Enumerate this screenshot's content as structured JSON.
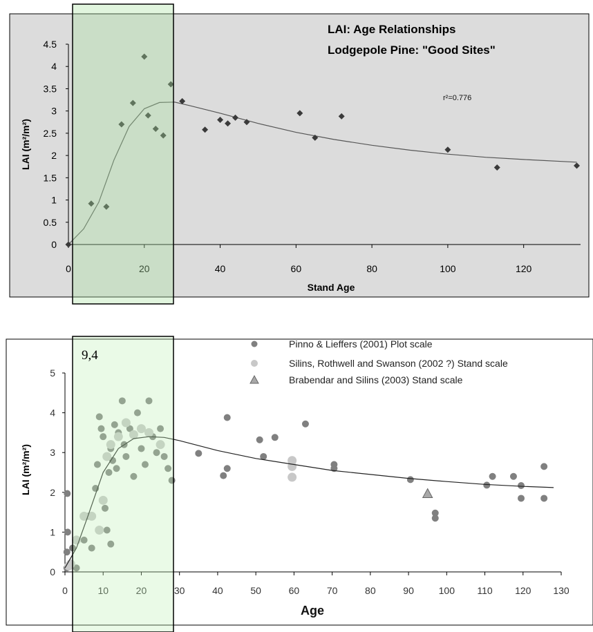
{
  "chart_data": [
    {
      "type": "scatter",
      "title": "LAI: Age Relationships",
      "subtitle": "Lodgepole Pine: \"Good Sites\"",
      "xlabel": "Stand Age",
      "ylabel": "LAI (m²/m²)",
      "annotation": "r²=0.776",
      "xlim": [
        0,
        135
      ],
      "ylim": [
        0,
        4.5
      ],
      "x_ticks": [
        "0",
        "20",
        "40",
        "60",
        "80",
        "100",
        "120"
      ],
      "y_ticks": [
        "0",
        "0.5",
        "1",
        "1.5",
        "2",
        "2.5",
        "3",
        "3.5",
        "4",
        "4.5"
      ],
      "grid": false,
      "series": [
        {
          "marker": "diamond",
          "color": "#3a3a3a",
          "points": [
            {
              "x": 0,
              "y": 0
            },
            {
              "x": 6,
              "y": 0.92
            },
            {
              "x": 10,
              "y": 0.85
            },
            {
              "x": 14,
              "y": 2.7
            },
            {
              "x": 17,
              "y": 3.18
            },
            {
              "x": 20,
              "y": 4.22
            },
            {
              "x": 21,
              "y": 2.9
            },
            {
              "x": 23,
              "y": 2.6
            },
            {
              "x": 25,
              "y": 2.45
            },
            {
              "x": 27,
              "y": 3.6
            },
            {
              "x": 30,
              "y": 3.22
            },
            {
              "x": 36,
              "y": 2.58
            },
            {
              "x": 40,
              "y": 2.8
            },
            {
              "x": 42,
              "y": 2.72
            },
            {
              "x": 44,
              "y": 2.85
            },
            {
              "x": 47,
              "y": 2.75
            },
            {
              "x": 61,
              "y": 2.95
            },
            {
              "x": 65,
              "y": 2.4
            },
            {
              "x": 72,
              "y": 2.88
            },
            {
              "x": 100,
              "y": 2.13
            },
            {
              "x": 113,
              "y": 1.73
            },
            {
              "x": 134,
              "y": 1.77
            }
          ]
        }
      ],
      "fit_line": [
        {
          "x": 0,
          "y": 0
        },
        {
          "x": 4,
          "y": 0.35
        },
        {
          "x": 8,
          "y": 0.95
        },
        {
          "x": 12,
          "y": 1.9
        },
        {
          "x": 16,
          "y": 2.65
        },
        {
          "x": 20,
          "y": 3.05
        },
        {
          "x": 24,
          "y": 3.19
        },
        {
          "x": 28,
          "y": 3.2
        },
        {
          "x": 32,
          "y": 3.12
        },
        {
          "x": 40,
          "y": 2.95
        },
        {
          "x": 50,
          "y": 2.72
        },
        {
          "x": 60,
          "y": 2.52
        },
        {
          "x": 70,
          "y": 2.36
        },
        {
          "x": 80,
          "y": 2.23
        },
        {
          "x": 90,
          "y": 2.12
        },
        {
          "x": 100,
          "y": 2.03
        },
        {
          "x": 110,
          "y": 1.96
        },
        {
          "x": 120,
          "y": 1.91
        },
        {
          "x": 134,
          "y": 1.85
        }
      ]
    },
    {
      "type": "scatter",
      "xlabel": "Age",
      "ylabel": "LAI (m²/m²)",
      "xlim": [
        0,
        130
      ],
      "ylim": [
        0,
        5
      ],
      "x_ticks": [
        "0",
        "10",
        "20",
        "30",
        "40",
        "50",
        "60",
        "70",
        "80",
        "90",
        "100",
        "110",
        "120",
        "130"
      ],
      "y_ticks": [
        "0",
        "1",
        "2",
        "3",
        "4",
        "5"
      ],
      "legend_position": "top",
      "series": [
        {
          "name": "Pinno & Lieffers (2001) Plot scale",
          "marker": "circle",
          "color": "#808080",
          "points": [
            {
              "x": 0.5,
              "y": 0.1
            },
            {
              "x": 0.5,
              "y": 0.5
            },
            {
              "x": 0.7,
              "y": 1.0
            },
            {
              "x": 0.6,
              "y": 1.97
            },
            {
              "x": 1.5,
              "y": 0.2
            },
            {
              "x": 2,
              "y": 0.6
            },
            {
              "x": 3,
              "y": 0.1
            },
            {
              "x": 5,
              "y": 0.8
            },
            {
              "x": 6,
              "y": 1.4
            },
            {
              "x": 7,
              "y": 0.6
            },
            {
              "x": 8,
              "y": 2.1
            },
            {
              "x": 8.5,
              "y": 2.7
            },
            {
              "x": 9,
              "y": 3.9
            },
            {
              "x": 9.5,
              "y": 3.6
            },
            {
              "x": 10,
              "y": 3.4
            },
            {
              "x": 10.5,
              "y": 1.6
            },
            {
              "x": 11,
              "y": 2.9
            },
            {
              "x": 11.5,
              "y": 2.5
            },
            {
              "x": 12,
              "y": 3.1
            },
            {
              "x": 12.5,
              "y": 2.8
            },
            {
              "x": 13,
              "y": 3.7
            },
            {
              "x": 13.5,
              "y": 2.6
            },
            {
              "x": 14,
              "y": 3.5
            },
            {
              "x": 15,
              "y": 4.3
            },
            {
              "x": 15.5,
              "y": 3.2
            },
            {
              "x": 16,
              "y": 2.9
            },
            {
              "x": 17,
              "y": 3.6
            },
            {
              "x": 18,
              "y": 2.4
            },
            {
              "x": 19,
              "y": 4.0
            },
            {
              "x": 20,
              "y": 3.1
            },
            {
              "x": 21,
              "y": 2.7
            },
            {
              "x": 22,
              "y": 4.3
            },
            {
              "x": 23,
              "y": 3.4
            },
            {
              "x": 24,
              "y": 3.0
            },
            {
              "x": 25,
              "y": 3.6
            },
            {
              "x": 26,
              "y": 2.9
            },
            {
              "x": 27,
              "y": 2.6
            },
            {
              "x": 28,
              "y": 2.3
            },
            {
              "x": 11,
              "y": 1.05
            },
            {
              "x": 12,
              "y": 0.7
            },
            {
              "x": 35,
              "y": 2.98
            },
            {
              "x": 41.5,
              "y": 2.42
            },
            {
              "x": 42.5,
              "y": 3.88
            },
            {
              "x": 42.5,
              "y": 2.6
            },
            {
              "x": 51,
              "y": 3.32
            },
            {
              "x": 52,
              "y": 2.9
            },
            {
              "x": 55,
              "y": 3.38
            },
            {
              "x": 63,
              "y": 3.72
            },
            {
              "x": 70.5,
              "y": 2.7
            },
            {
              "x": 70.5,
              "y": 2.6
            },
            {
              "x": 90.5,
              "y": 2.32
            },
            {
              "x": 97,
              "y": 1.48
            },
            {
              "x": 97,
              "y": 1.35
            },
            {
              "x": 110.5,
              "y": 2.18
            },
            {
              "x": 112,
              "y": 2.4
            },
            {
              "x": 117.5,
              "y": 2.4
            },
            {
              "x": 119.5,
              "y": 2.17
            },
            {
              "x": 119.5,
              "y": 1.85
            },
            {
              "x": 125.5,
              "y": 2.65
            },
            {
              "x": 125.5,
              "y": 1.85
            }
          ]
        },
        {
          "name": " Silins, Rothwell and Swanson (2002 ?) Stand scale",
          "marker": "circle",
          "color": "#c8c8c8",
          "points": [
            {
              "x": 1,
              "y": 0.15
            },
            {
              "x": 1.5,
              "y": 0.2
            },
            {
              "x": 3,
              "y": 0.8
            },
            {
              "x": 5,
              "y": 1.4
            },
            {
              "x": 7,
              "y": 1.4
            },
            {
              "x": 9,
              "y": 1.05
            },
            {
              "x": 10,
              "y": 1.8
            },
            {
              "x": 11,
              "y": 2.9
            },
            {
              "x": 12,
              "y": 3.2
            },
            {
              "x": 14,
              "y": 3.4
            },
            {
              "x": 16,
              "y": 3.75
            },
            {
              "x": 18,
              "y": 3.45
            },
            {
              "x": 20,
              "y": 3.6
            },
            {
              "x": 22,
              "y": 3.5
            },
            {
              "x": 25,
              "y": 3.2
            },
            {
              "x": 59.5,
              "y": 2.8
            },
            {
              "x": 59.5,
              "y": 2.65
            },
            {
              "x": 59.5,
              "y": 2.38
            }
          ]
        },
        {
          "name": "Brabendar and Silins (2003) Stand scale",
          "marker": "triangle",
          "color": "#a8a8a8",
          "points": [
            {
              "x": 95,
              "y": 1.97
            }
          ]
        }
      ],
      "fit_line": [
        {
          "x": 0,
          "y": 0.1
        },
        {
          "x": 3,
          "y": 0.6
        },
        {
          "x": 6,
          "y": 1.4
        },
        {
          "x": 10,
          "y": 2.5
        },
        {
          "x": 14,
          "y": 3.1
        },
        {
          "x": 18,
          "y": 3.35
        },
        {
          "x": 22,
          "y": 3.4
        },
        {
          "x": 26,
          "y": 3.38
        },
        {
          "x": 30,
          "y": 3.3
        },
        {
          "x": 40,
          "y": 3.05
        },
        {
          "x": 50,
          "y": 2.85
        },
        {
          "x": 60,
          "y": 2.7
        },
        {
          "x": 70,
          "y": 2.55
        },
        {
          "x": 80,
          "y": 2.45
        },
        {
          "x": 90,
          "y": 2.35
        },
        {
          "x": 100,
          "y": 2.27
        },
        {
          "x": 110,
          "y": 2.2
        },
        {
          "x": 120,
          "y": 2.15
        },
        {
          "x": 128,
          "y": 2.12
        }
      ]
    }
  ],
  "highlight": {
    "label": "9,4",
    "x_range": [
      0,
      27
    ]
  }
}
